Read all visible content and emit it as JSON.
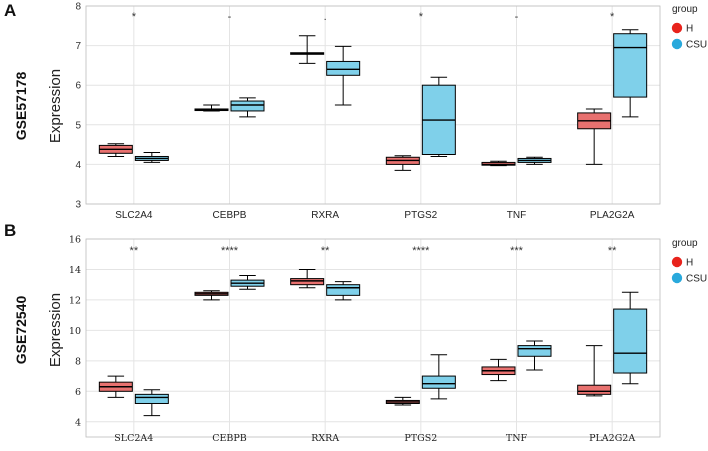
{
  "chart_data": [
    {
      "type": "box",
      "panel": "A",
      "dataset": "GSE57178",
      "ylabel": "Expression",
      "ylim": [
        3,
        8
      ],
      "yticks": [
        3,
        4,
        5,
        6,
        7,
        8
      ],
      "categories": [
        "SLC2A4",
        "CEBPB",
        "RXRA",
        "PTGS2",
        "TNF",
        "PLA2G2A"
      ],
      "significance": [
        "*",
        "-",
        ".",
        "*",
        "-",
        "*"
      ],
      "legend": {
        "title": "group",
        "items": [
          {
            "label": "H",
            "color": "#e8716f"
          },
          {
            "label": "CSU",
            "color": "#7fd0ea"
          }
        ]
      },
      "series": [
        {
          "name": "H",
          "color": "#e8716f",
          "boxes": [
            {
              "min": 4.2,
              "q1": 4.28,
              "median": 4.38,
              "q3": 4.48,
              "max": 4.52
            },
            {
              "min": 5.35,
              "q1": 5.36,
              "median": 5.38,
              "q3": 5.4,
              "max": 5.5
            },
            {
              "min": 6.55,
              "q1": 6.78,
              "median": 6.8,
              "q3": 6.82,
              "max": 7.25
            },
            {
              "min": 3.85,
              "q1": 4.0,
              "median": 4.1,
              "q3": 4.18,
              "max": 4.22
            },
            {
              "min": 3.97,
              "q1": 3.98,
              "median": 4.0,
              "q3": 4.05,
              "max": 4.08
            },
            {
              "min": 4.0,
              "q1": 4.9,
              "median": 5.1,
              "q3": 5.3,
              "max": 5.4
            }
          ]
        },
        {
          "name": "CSU",
          "color": "#7fd0ea",
          "boxes": [
            {
              "min": 4.05,
              "q1": 4.1,
              "median": 4.15,
              "q3": 4.2,
              "max": 4.3
            },
            {
              "min": 5.2,
              "q1": 5.35,
              "median": 5.5,
              "q3": 5.6,
              "max": 5.68
            },
            {
              "min": 5.5,
              "q1": 6.25,
              "median": 6.4,
              "q3": 6.6,
              "max": 6.98
            },
            {
              "min": 4.2,
              "q1": 4.25,
              "median": 5.12,
              "q3": 6.0,
              "max": 6.2
            },
            {
              "min": 4.0,
              "q1": 4.05,
              "median": 4.1,
              "q3": 4.15,
              "max": 4.18
            },
            {
              "min": 5.2,
              "q1": 5.7,
              "median": 6.95,
              "q3": 7.3,
              "max": 7.4
            }
          ]
        }
      ]
    },
    {
      "type": "box",
      "panel": "B",
      "dataset": "GSE72540",
      "ylabel": "Expression",
      "ylim": [
        3,
        16
      ],
      "yticks": [
        4,
        6,
        8,
        10,
        12,
        14,
        16
      ],
      "categories": [
        "SLC2A4",
        "CEBPB",
        "RXRA",
        "PTGS2",
        "TNF",
        "PLA2G2A"
      ],
      "significance": [
        "**",
        "****",
        "**",
        "****",
        "***",
        "**"
      ],
      "legend": {
        "title": "group",
        "items": [
          {
            "label": "H",
            "color": "#e8716f"
          },
          {
            "label": "CSU",
            "color": "#7fd0ea"
          }
        ]
      },
      "series": [
        {
          "name": "H",
          "color": "#e8716f",
          "boxes": [
            {
              "min": 5.6,
              "q1": 6.0,
              "median": 6.3,
              "q3": 6.6,
              "max": 7.0
            },
            {
              "min": 12.0,
              "q1": 12.3,
              "median": 12.4,
              "q3": 12.5,
              "max": 12.6
            },
            {
              "min": 12.8,
              "q1": 13.0,
              "median": 13.25,
              "q3": 13.4,
              "max": 14.0
            },
            {
              "min": 5.1,
              "q1": 5.2,
              "median": 5.3,
              "q3": 5.4,
              "max": 5.6
            },
            {
              "min": 6.7,
              "q1": 7.1,
              "median": 7.35,
              "q3": 7.6,
              "max": 8.1
            },
            {
              "min": 5.7,
              "q1": 5.8,
              "median": 6.0,
              "q3": 6.4,
              "max": 9.0
            }
          ]
        },
        {
          "name": "CSU",
          "color": "#7fd0ea",
          "boxes": [
            {
              "min": 4.4,
              "q1": 5.2,
              "median": 5.6,
              "q3": 5.8,
              "max": 6.1
            },
            {
              "min": 12.7,
              "q1": 12.9,
              "median": 13.1,
              "q3": 13.3,
              "max": 13.6
            },
            {
              "min": 12.0,
              "q1": 12.3,
              "median": 12.8,
              "q3": 13.0,
              "max": 13.2
            },
            {
              "min": 5.5,
              "q1": 6.2,
              "median": 6.5,
              "q3": 7.0,
              "max": 8.4
            },
            {
              "min": 7.4,
              "q1": 8.3,
              "median": 8.8,
              "q3": 9.0,
              "max": 9.3
            },
            {
              "min": 6.5,
              "q1": 7.2,
              "median": 8.5,
              "q3": 11.4,
              "max": 12.5
            }
          ]
        }
      ]
    }
  ]
}
